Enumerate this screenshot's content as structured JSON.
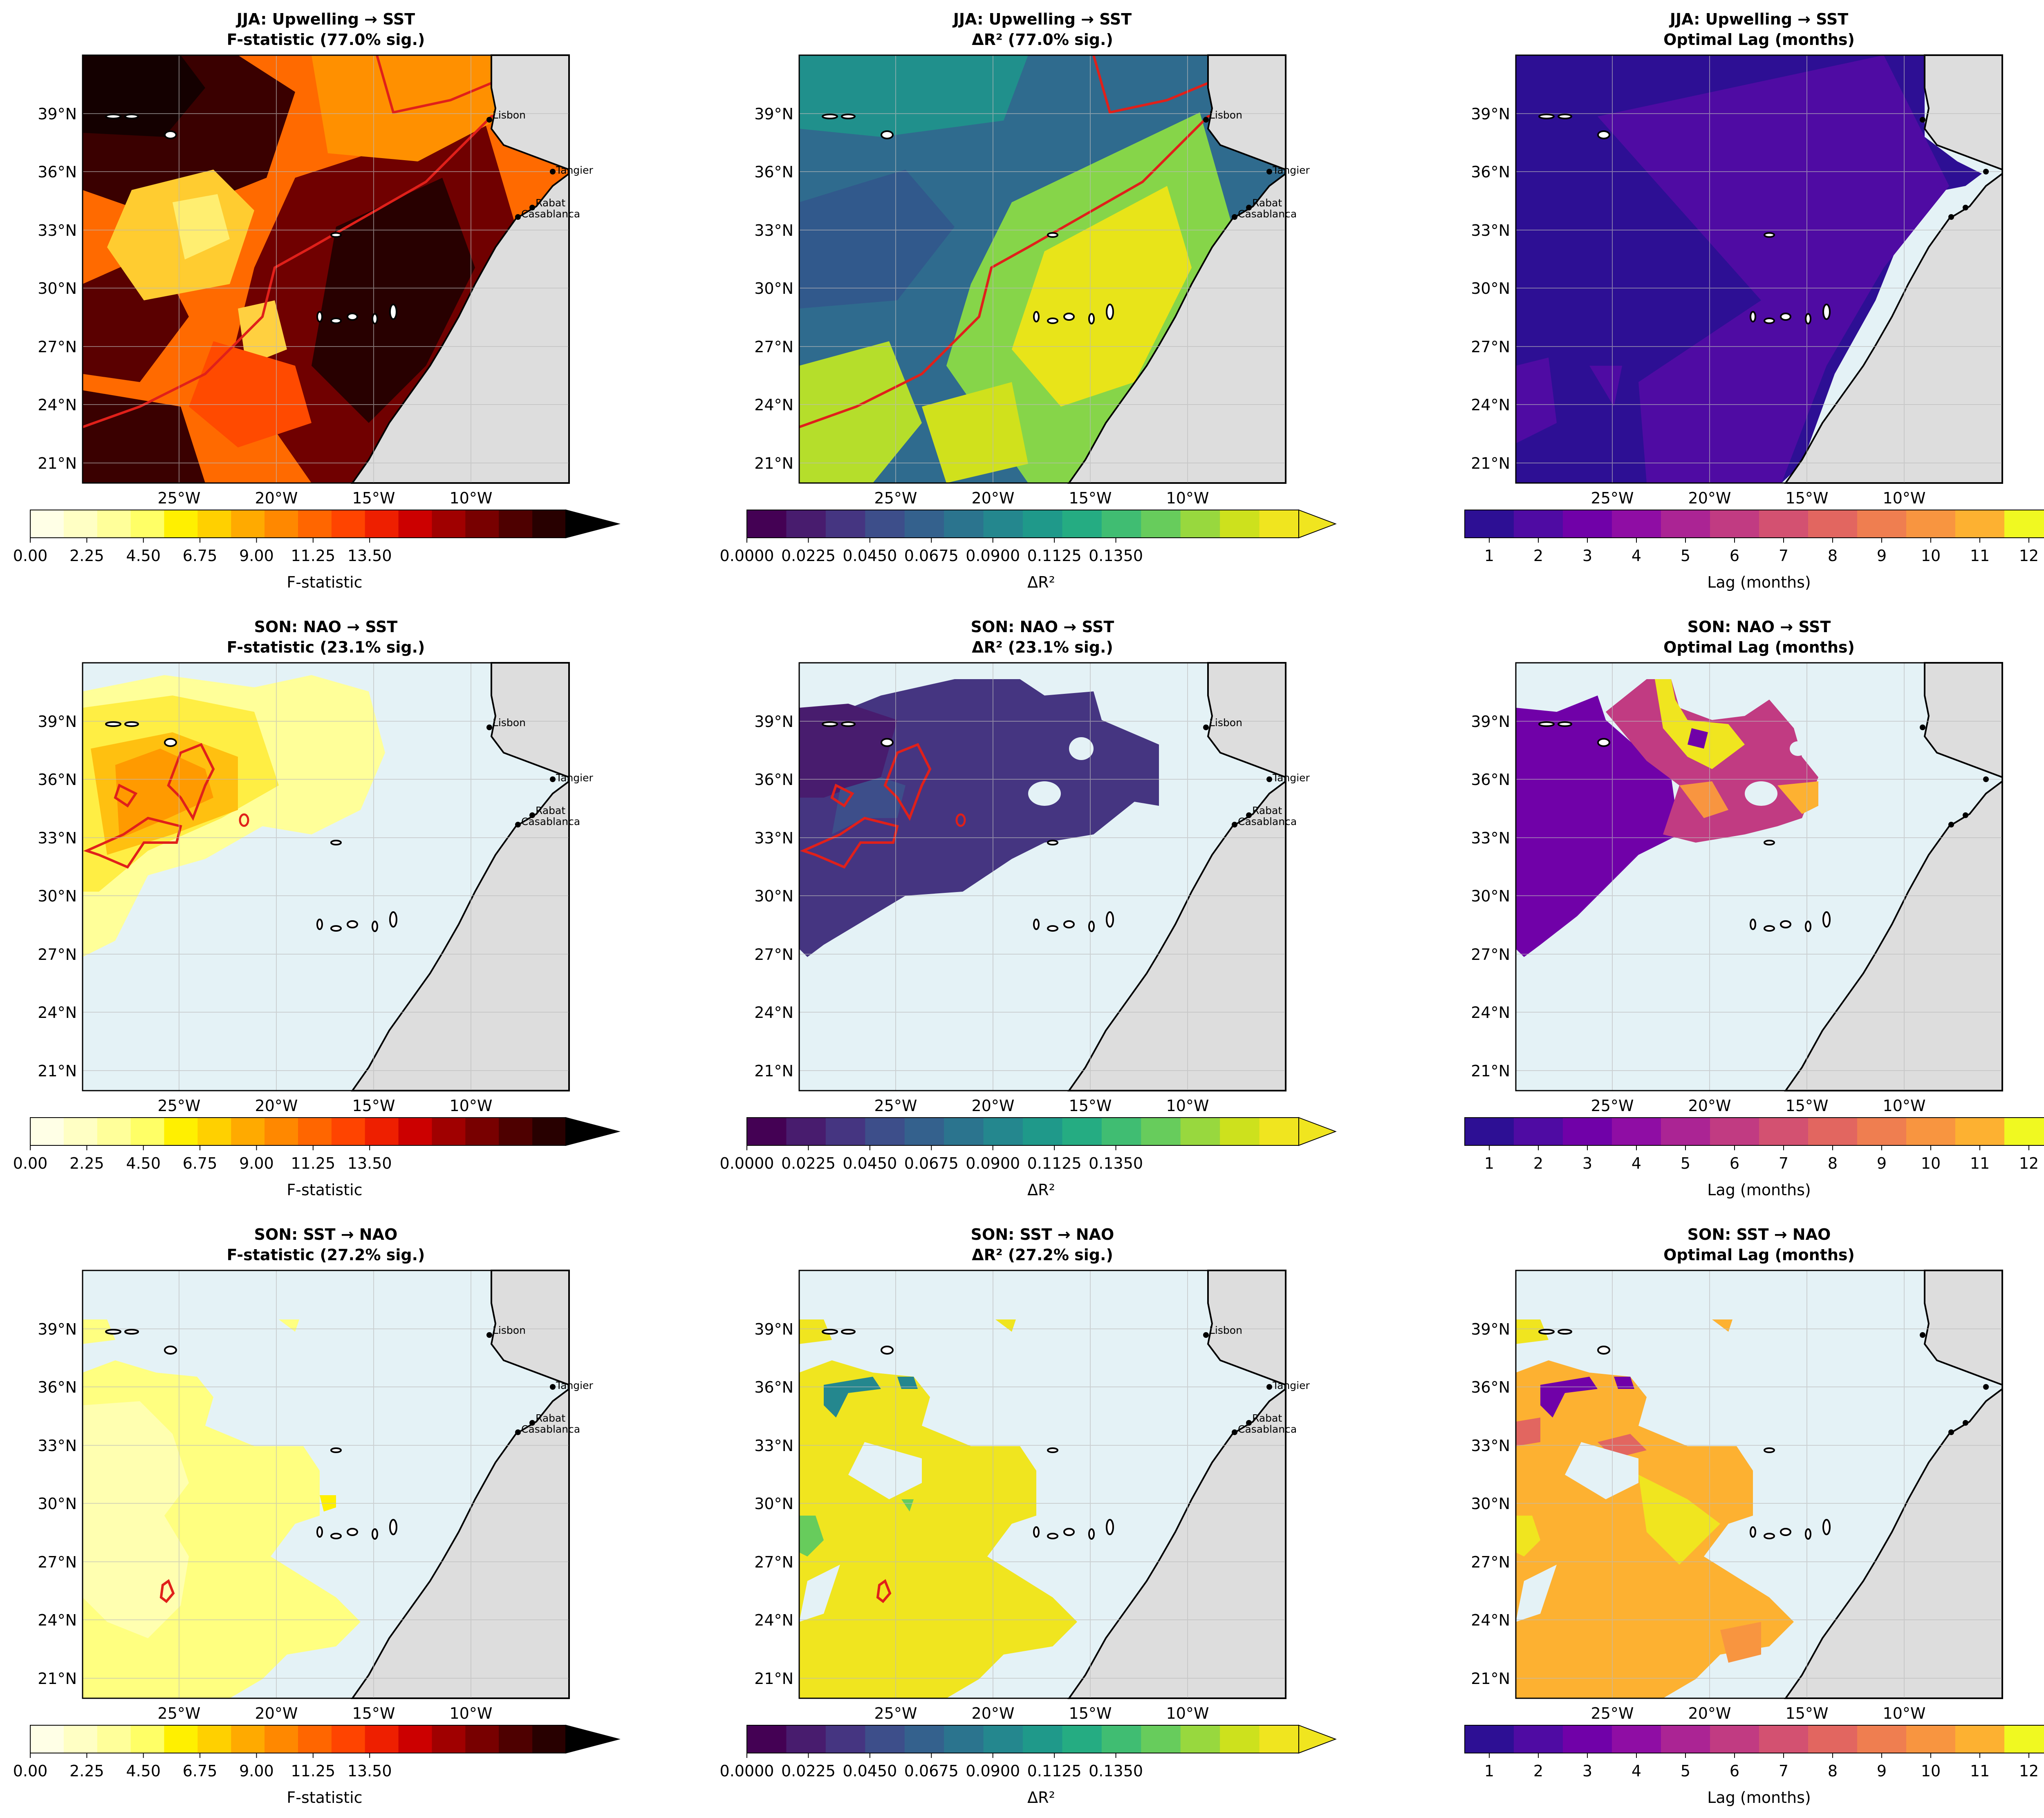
{
  "figure": {
    "lat_ticks": [
      "21°N",
      "24°N",
      "27°N",
      "30°N",
      "33°N",
      "36°N",
      "39°N"
    ],
    "lon_ticks": [
      "25°W",
      "20°W",
      "15°W",
      "10°W"
    ],
    "cities": [
      "Lisbon",
      "Tangier",
      "Rabat",
      "Casablanca"
    ],
    "colors": {
      "ocean": "#e4f2f6",
      "land": "#dddddd",
      "sig_contour": "#e0201a",
      "grid": "#bbbbbb"
    }
  },
  "colorbars": {
    "fstat": {
      "label": "F-statistic",
      "ticks": [
        "0.00",
        "2.25",
        "4.50",
        "6.75",
        "9.00",
        "11.25",
        "13.50"
      ],
      "colormap": "hot_r",
      "extend": "max",
      "colors": [
        "#ffffe6",
        "#ffffc4",
        "#ffff9a",
        "#ffff66",
        "#fff000",
        "#ffd000",
        "#ffaa00",
        "#ff8800",
        "#ff6600",
        "#ff4400",
        "#ee1f00",
        "#cc0000",
        "#a00000",
        "#780000",
        "#4e0000",
        "#280000"
      ]
    },
    "dr2": {
      "label": "ΔR²",
      "ticks": [
        "0.0000",
        "0.0225",
        "0.0450",
        "0.0675",
        "0.0900",
        "0.1125",
        "0.1350"
      ],
      "colormap": "viridis",
      "extend": "max",
      "colors": [
        "#440154",
        "#481c6e",
        "#453581",
        "#3d4e8a",
        "#34618d",
        "#2b748e",
        "#24878e",
        "#1f998a",
        "#25ac82",
        "#40bd72",
        "#67cc5c",
        "#98d83e",
        "#cde11d",
        "#f0e51f"
      ]
    },
    "lag": {
      "label": "Lag (months)",
      "ticks": [
        "1",
        "2",
        "3",
        "4",
        "5",
        "6",
        "7",
        "8",
        "9",
        "10",
        "11",
        "12"
      ],
      "colormap": "plasma",
      "colors": [
        "#2d0f94",
        "#4f0ba3",
        "#7001a8",
        "#8f0da4",
        "#ab2494",
        "#c13b82",
        "#d35171",
        "#e26660",
        "#ef7e50",
        "#f89540",
        "#fdb131",
        "#f0f921"
      ]
    }
  },
  "panels": [
    {
      "title1": "JJA: Upwelling → SST",
      "title2": "F-statistic (77.0% sig.)",
      "kind": "fstat",
      "pct_sig": 77.0
    },
    {
      "title1": "JJA: Upwelling → SST",
      "title2": "ΔR² (77.0% sig.)",
      "kind": "dr2",
      "pct_sig": 77.0
    },
    {
      "title1": "JJA: Upwelling → SST",
      "title2": "Optimal Lag (months)",
      "kind": "lag"
    },
    {
      "title1": "SON: NAO → SST",
      "title2": "F-statistic (23.1% sig.)",
      "kind": "fstat",
      "pct_sig": 23.1
    },
    {
      "title1": "SON: NAO → SST",
      "title2": "ΔR² (23.1% sig.)",
      "kind": "dr2",
      "pct_sig": 23.1
    },
    {
      "title1": "SON: NAO → SST",
      "title2": "Optimal Lag (months)",
      "kind": "lag"
    },
    {
      "title1": "SON: SST → NAO",
      "title2": "F-statistic (27.2% sig.)",
      "kind": "fstat",
      "pct_sig": 27.2
    },
    {
      "title1": "SON: SST → NAO",
      "title2": "ΔR² (27.2% sig.)",
      "kind": "dr2",
      "pct_sig": 27.2
    },
    {
      "title1": "SON: SST → NAO",
      "title2": "Optimal Lag (months)",
      "kind": "lag"
    }
  ]
}
